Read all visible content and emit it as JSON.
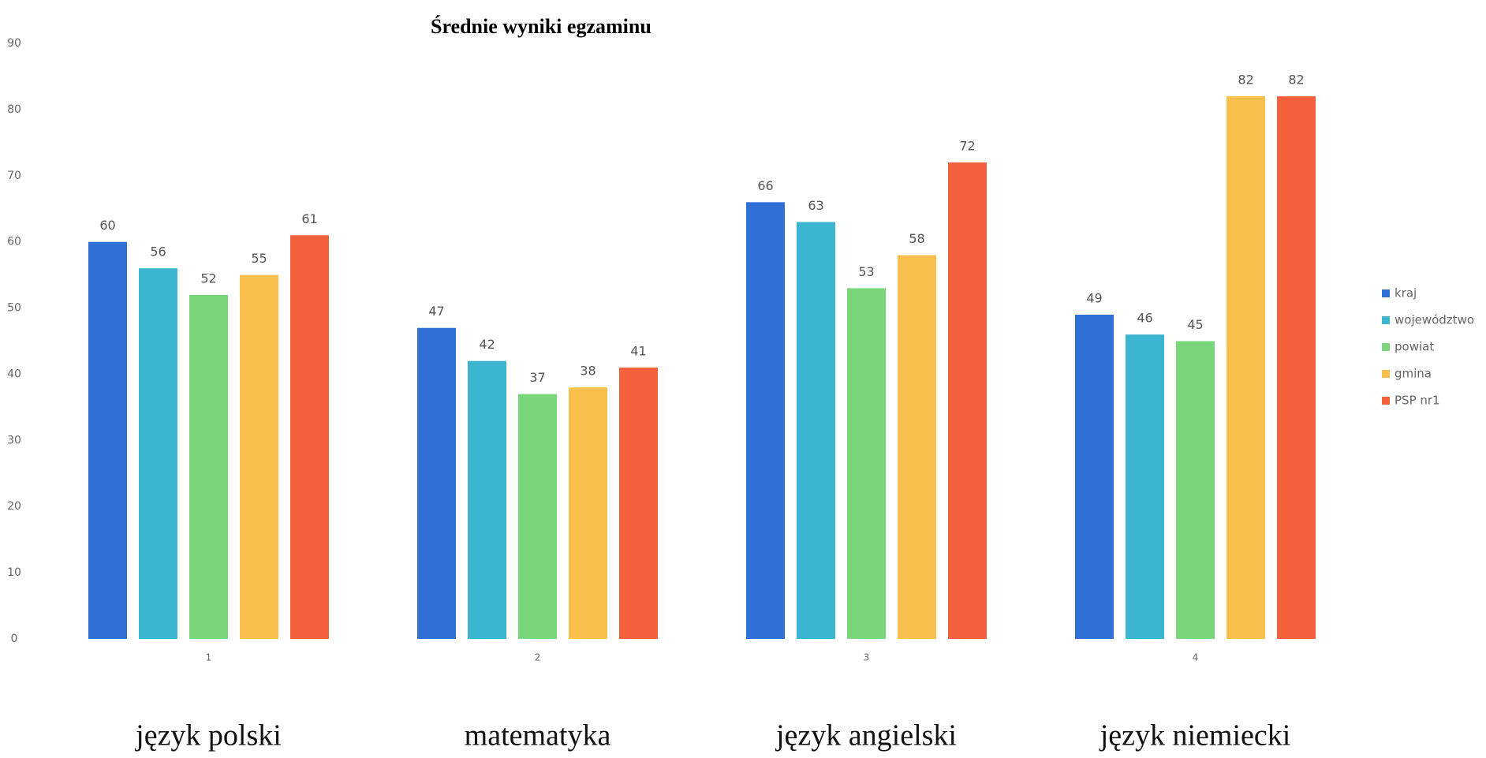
{
  "chart_data": {
    "type": "bar",
    "title": "Średnie wyniki egzaminu",
    "categories": [
      "1",
      "2",
      "3",
      "4"
    ],
    "subject_labels": [
      "język polski",
      "matematyka",
      "język angielski",
      "język niemiecki"
    ],
    "series": [
      {
        "name": "kraj",
        "color": "#2f6fd6",
        "values": [
          60,
          47,
          66,
          49
        ]
      },
      {
        "name": "województwo",
        "color": "#3bb5d0",
        "values": [
          56,
          42,
          63,
          46
        ]
      },
      {
        "name": "powiat",
        "color": "#7ad67a",
        "values": [
          52,
          37,
          53,
          45
        ]
      },
      {
        "name": "gmina",
        "color": "#f9c04e",
        "values": [
          55,
          38,
          58,
          82
        ]
      },
      {
        "name": "PSP nr1",
        "color": "#f5603c",
        "values": [
          61,
          41,
          72,
          82
        ]
      }
    ],
    "ylim": [
      0,
      90
    ],
    "yticks": [
      0,
      10,
      20,
      30,
      40,
      50,
      60,
      70,
      80,
      90
    ],
    "grid": false,
    "legend": "right"
  }
}
